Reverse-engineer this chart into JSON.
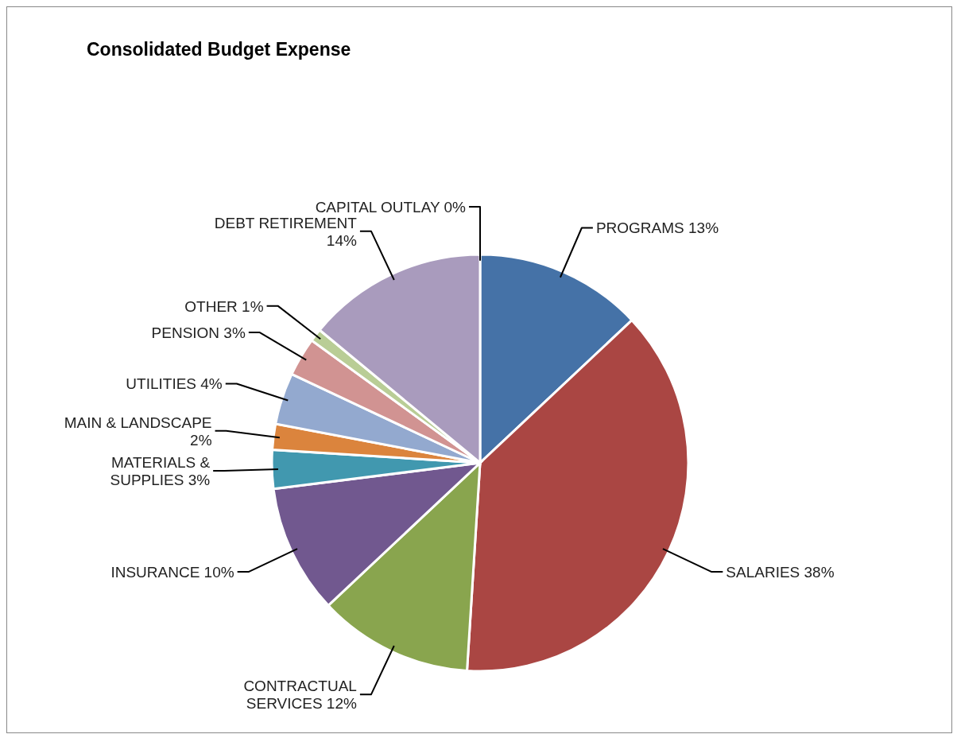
{
  "chart_data": {
    "type": "pie",
    "title": "Consolidated Budget Expense",
    "categories": [
      "PROGRAMS",
      "SALARIES",
      "CONTRACTUAL SERVICES",
      "INSURANCE",
      "MATERIALS & SUPPLIES",
      "MAIN & LANDSCAPE",
      "UTILITIES",
      "PENSION",
      "OTHER",
      "DEBT RETIREMENT",
      "CAPITAL OUTLAY"
    ],
    "values": [
      13,
      38,
      12,
      10,
      3,
      2,
      4,
      3,
      1,
      14,
      0
    ],
    "value_labels": [
      "13%",
      "38%",
      "12%",
      "10%",
      "3%",
      "2%",
      "4%",
      "3%",
      "1%",
      "14%",
      "0%"
    ],
    "colors": [
      "#4572a7",
      "#aa4643",
      "#89a54e",
      "#71588f",
      "#4198af",
      "#db843d",
      "#93a9cf",
      "#d19392",
      "#b9cd96",
      "#a99bbd",
      "#8cc4d8"
    ]
  }
}
